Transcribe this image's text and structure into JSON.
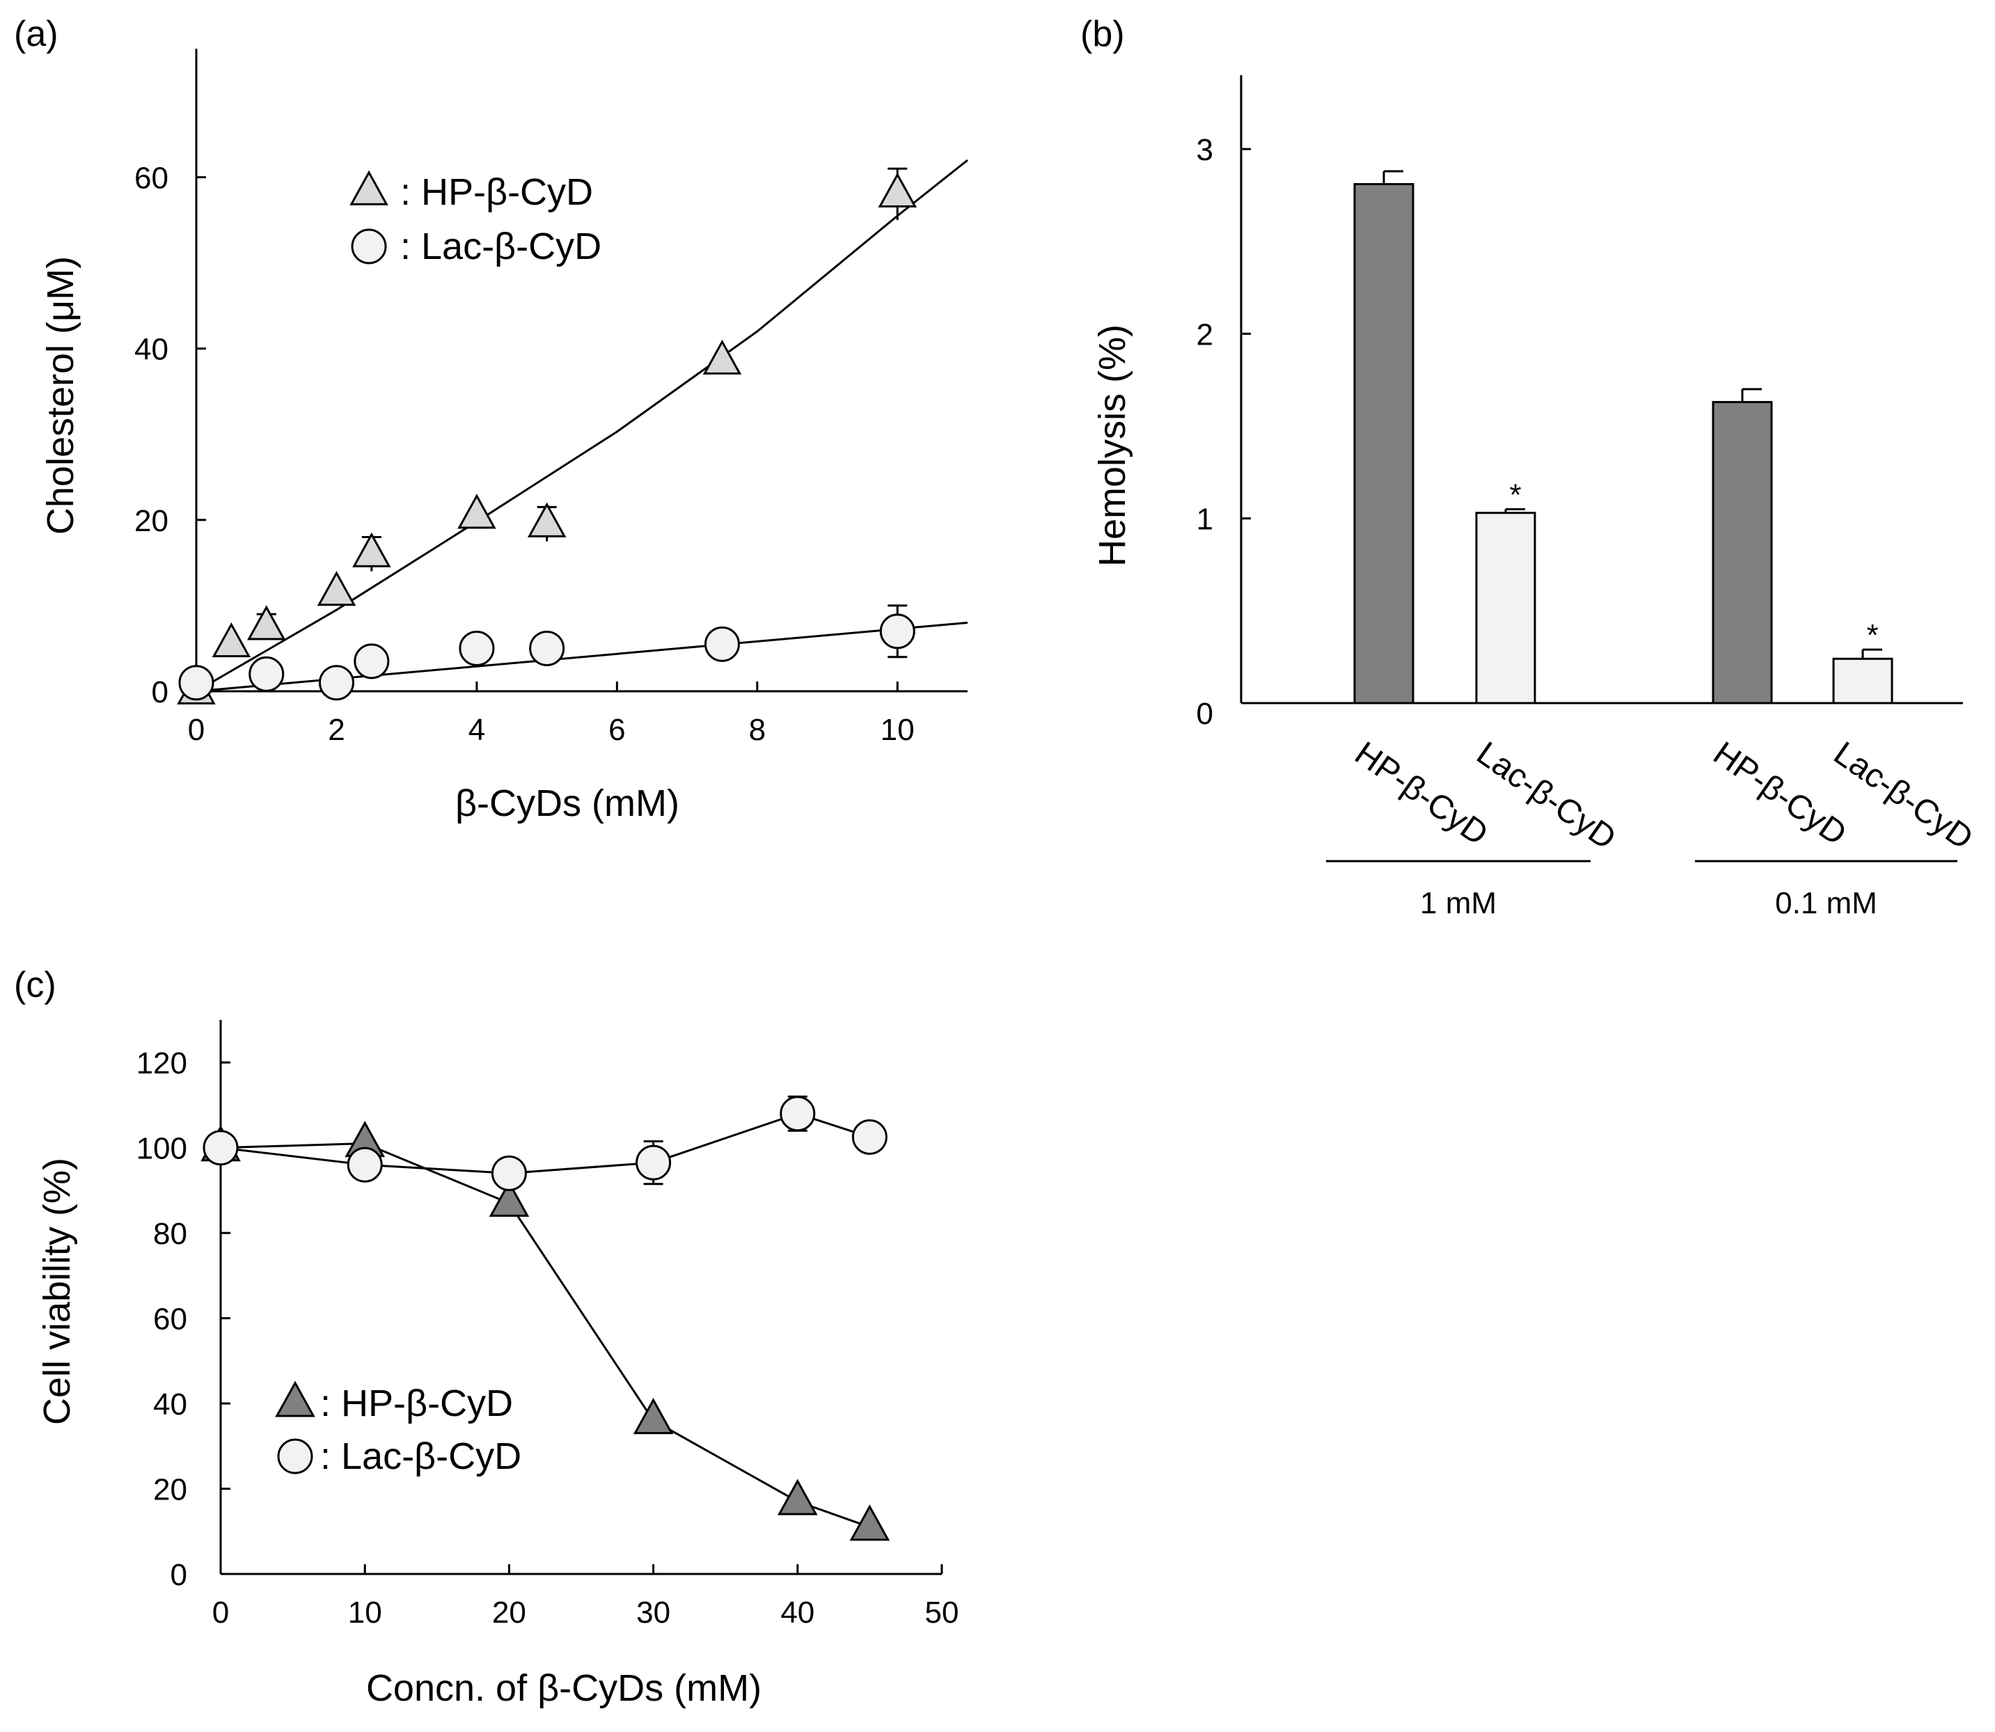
{
  "chart_data": [
    {
      "panel": "(a)",
      "type": "scatter",
      "xlabel": "β-CyDs (mM)",
      "ylabel": "Cholesterol (μM)",
      "xlim": [
        0,
        11
      ],
      "ylim": [
        0,
        75
      ],
      "xticks": [
        0,
        2,
        4,
        6,
        8,
        10
      ],
      "yticks": [
        0,
        20,
        40,
        60
      ],
      "legend": [
        {
          "marker": "triangle",
          "label": ": HP-β-CyD",
          "color": "#d9d9d9"
        },
        {
          "marker": "circle",
          "label": ": Lac-β-CyD",
          "color": "#f2f2f2"
        }
      ],
      "series": [
        {
          "name": "HP-β-CyD",
          "marker": "triangle",
          "color": "#d9d9d9",
          "x": [
            0,
            0.5,
            1,
            2,
            2.5,
            4,
            5,
            7.5,
            10
          ],
          "y": [
            0,
            5.5,
            7.5,
            11.5,
            16,
            20.5,
            19.5,
            38.5,
            58
          ],
          "err": [
            0,
            0,
            1.5,
            0,
            2,
            0,
            2,
            0,
            3
          ],
          "fit": [
            [
              0,
              0
            ],
            [
              2,
              9.5
            ],
            [
              4,
              19.8
            ],
            [
              6,
              30.3
            ],
            [
              8,
              42
            ],
            [
              10,
              55.5
            ],
            [
              11,
              62
            ]
          ]
        },
        {
          "name": "Lac-β-CyD",
          "marker": "circle",
          "color": "#f2f2f2",
          "x": [
            0,
            1,
            2,
            2.5,
            4,
            5,
            7.5,
            10
          ],
          "y": [
            1,
            2,
            1,
            3.5,
            5,
            5,
            5.5,
            7
          ],
          "err": [
            0,
            0,
            0,
            0,
            0,
            0,
            0,
            3
          ],
          "fit": [
            [
              0,
              0
            ],
            [
              11,
              8
            ]
          ]
        }
      ]
    },
    {
      "panel": "(b)",
      "type": "bar",
      "ylabel": "Hemolysis (%)",
      "ylim": [
        0,
        3.4
      ],
      "yticks": [
        0,
        1,
        2,
        3
      ],
      "groups": [
        {
          "label": "1 mM",
          "bars": [
            {
              "category": "HP-β-CyD",
              "value": 2.81,
              "err": 0.07,
              "color": "#808080",
              "star": ""
            },
            {
              "category": "Lac-β-CyD",
              "value": 1.03,
              "err": 0.02,
              "color": "#f2f2f2",
              "star": "*"
            }
          ]
        },
        {
          "label": "0.1 mM",
          "bars": [
            {
              "category": "HP-β-CyD",
              "value": 1.63,
              "err": 0.07,
              "color": "#808080",
              "star": ""
            },
            {
              "category": "Lac-β-CyD",
              "value": 0.24,
              "err": 0.05,
              "color": "#f2f2f2",
              "star": "*"
            }
          ]
        }
      ]
    },
    {
      "panel": "(c)",
      "type": "line",
      "xlabel": "Concn. of β-CyDs (mM)",
      "ylabel": "Cell viability (%)",
      "xlim": [
        0,
        50
      ],
      "ylim": [
        0,
        130
      ],
      "xticks": [
        0,
        10,
        20,
        30,
        40,
        50
      ],
      "yticks": [
        0,
        20,
        40,
        60,
        80,
        100,
        120
      ],
      "legend": [
        {
          "marker": "triangle",
          "label": ": HP-β-CyD",
          "color": "#808080"
        },
        {
          "marker": "circle",
          "label": ": Lac-β-CyD",
          "color": "#f2f2f2"
        }
      ],
      "series": [
        {
          "name": "HP-β-CyD",
          "marker": "triangle",
          "color": "#808080",
          "x": [
            0,
            10,
            20,
            30,
            40,
            45
          ],
          "y": [
            100,
            101,
            87,
            36,
            17,
            11
          ],
          "err": [
            0,
            0,
            0,
            0,
            0,
            0
          ]
        },
        {
          "name": "Lac-β-CyD",
          "marker": "circle",
          "color": "#f2f2f2",
          "x": [
            0,
            10,
            20,
            30,
            40,
            45
          ],
          "y": [
            100,
            96,
            94,
            96.5,
            108,
            102.5
          ],
          "err": [
            0,
            0,
            0,
            5,
            4,
            0
          ]
        }
      ]
    }
  ]
}
